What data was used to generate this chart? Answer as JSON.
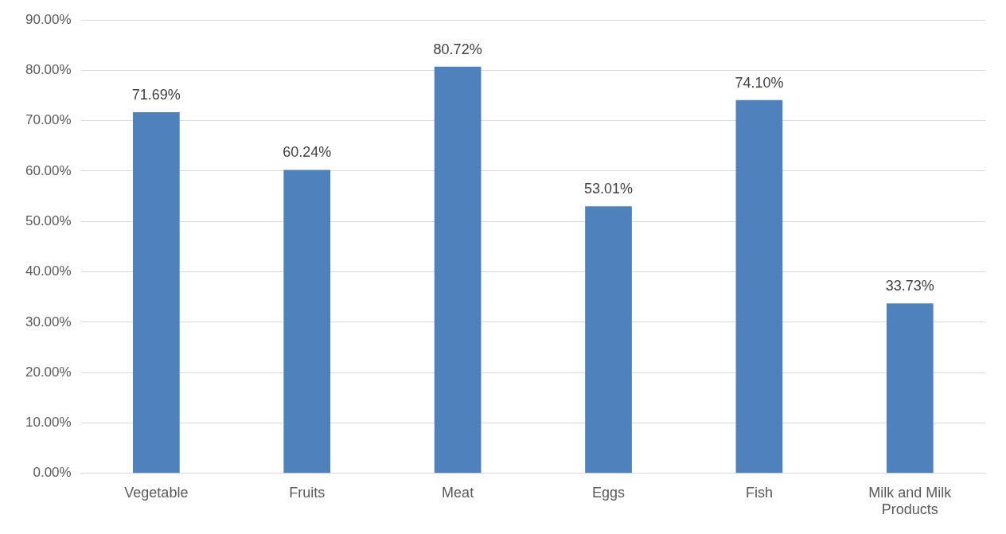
{
  "chart_data": {
    "type": "bar",
    "categories": [
      "Vegetable",
      "Fruits",
      "Meat",
      "Eggs",
      "Fish",
      "Milk and Milk Products"
    ],
    "values": [
      71.69,
      60.24,
      80.72,
      53.01,
      74.1,
      33.73
    ],
    "value_labels": [
      "71.69%",
      "60.24%",
      "80.72%",
      "53.01%",
      "74.10%",
      "33.73%"
    ],
    "color": "#4f81bd",
    "ylim": [
      0,
      90
    ],
    "yticks": [
      {
        "value": 0,
        "label": "0.00%"
      },
      {
        "value": 10,
        "label": "10.00%"
      },
      {
        "value": 20,
        "label": "20.00%"
      },
      {
        "value": 30,
        "label": "30.00%"
      },
      {
        "value": 40,
        "label": "40.00%"
      },
      {
        "value": 50,
        "label": "50.00%"
      },
      {
        "value": 60,
        "label": "60.00%"
      },
      {
        "value": 70,
        "label": "70.00%"
      },
      {
        "value": 80,
        "label": "80.00%"
      },
      {
        "value": 90,
        "label": "90.00%"
      }
    ],
    "grid": "y",
    "legend": false
  }
}
